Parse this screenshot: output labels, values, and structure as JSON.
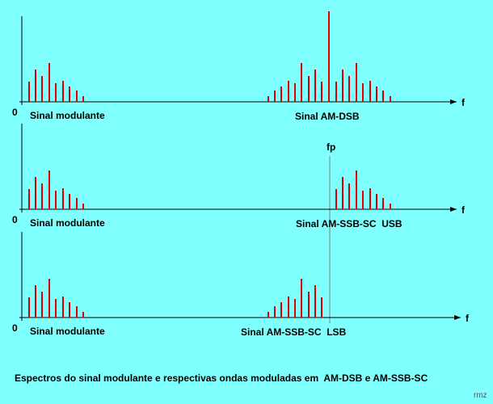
{
  "panels": [
    {
      "zero": "0",
      "axis": "f",
      "baseband": "Sinal modulante",
      "modulated": "Sinal AM-DSB"
    },
    {
      "zero": "0",
      "axis": "f",
      "baseband": "Sinal modulante",
      "modulated": "Sinal AM-SSB-SC  USB",
      "carrier": "fp"
    },
    {
      "zero": "0",
      "axis": "f",
      "baseband": "Sinal modulante",
      "modulated": "Sinal AM-SSB-SC  LSB"
    }
  ],
  "caption": "Espectros do sinal modulante e respectivas ondas moduladas em  AM-DSB e AM-SSB-SC",
  "signature": "rmz"
}
